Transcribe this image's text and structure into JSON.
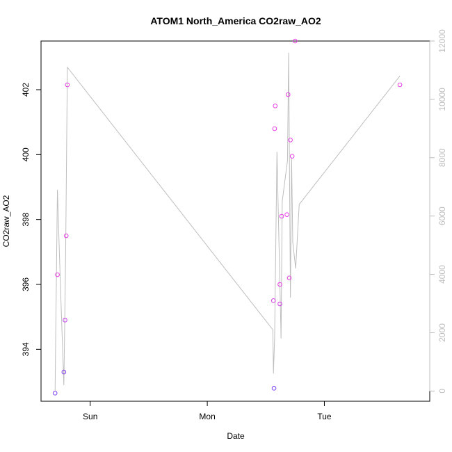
{
  "chart_data": {
    "type": "scatter",
    "title": "ATOM1 North_America CO2raw_AO2",
    "xlabel": "Date",
    "ylabel": "CO2raw_AO2",
    "x_ticks": [
      "Sun",
      "Mon",
      "Tue"
    ],
    "x_tick_values": [
      1.0,
      2.0,
      3.0
    ],
    "xlim": [
      0.58,
      3.9
    ],
    "ylim": [
      392.4,
      403.5
    ],
    "y_ticks": [
      394,
      396,
      398,
      400,
      402
    ],
    "y2_ticks": [
      0,
      2000,
      4000,
      6000,
      8000,
      10000,
      12000
    ],
    "y2lim": [
      -350,
      12000
    ],
    "grid": false,
    "colors": {
      "line": "#bebebe",
      "point_low": "#7a3cf2",
      "point_high": "#e83ce6",
      "axis": "#000000",
      "right_axis": "#bdbdbd"
    },
    "series": [
      {
        "type": "points",
        "x": [
          0.7,
          0.72,
          0.775,
          0.785,
          0.795,
          0.805,
          2.565,
          2.57,
          2.575,
          2.58,
          2.62,
          2.62,
          2.635,
          2.68,
          2.69,
          2.7,
          2.71,
          2.725,
          2.75,
          3.645
        ],
        "values": [
          392.65,
          396.3,
          393.3,
          394.9,
          397.5,
          402.15,
          395.5,
          392.8,
          400.8,
          401.5,
          395.4,
          396.0,
          398.1,
          398.15,
          401.85,
          396.2,
          400.45,
          399.95,
          403.5,
          402.15
        ]
      },
      {
        "type": "line",
        "axis": "right",
        "x": [
          0.7,
          0.72,
          0.745,
          0.775,
          0.79,
          0.805,
          2.56,
          2.565,
          2.575,
          2.595,
          2.62,
          2.63,
          2.64,
          2.685,
          2.695,
          2.71,
          2.72,
          2.73,
          2.755,
          2.785,
          3.645
        ],
        "values": [
          0,
          6900,
          3700,
          200,
          4600,
          11100,
          2100,
          600,
          1800,
          8200,
          3700,
          1800,
          6500,
          7900,
          11600,
          3200,
          8000,
          5100,
          4200,
          6400,
          10800
        ]
      }
    ]
  }
}
